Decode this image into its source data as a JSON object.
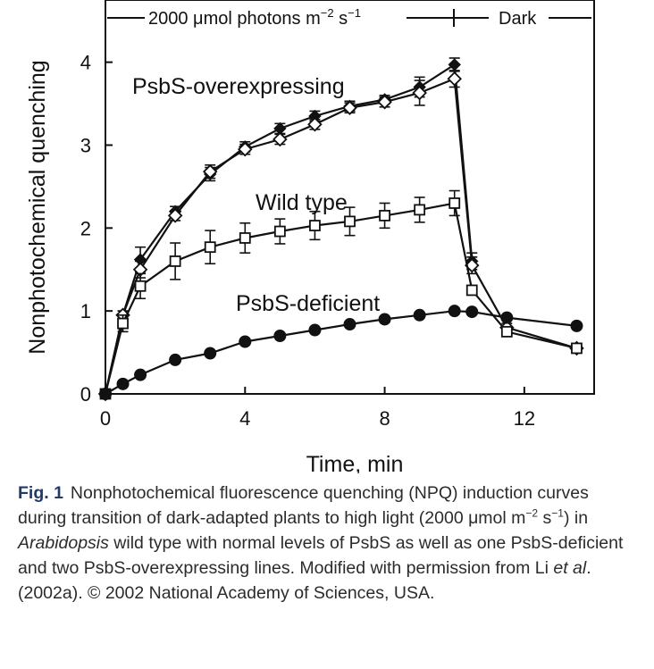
{
  "chart_data": {
    "type": "line",
    "xlabel": "Time, min",
    "ylabel": "Nonphotochemical quenching",
    "xlim": [
      0,
      14
    ],
    "ylim": [
      0,
      4.75
    ],
    "xticks": [
      0,
      4,
      8,
      12
    ],
    "yticks": [
      0,
      1,
      2,
      3,
      4
    ],
    "light_bar": {
      "light_label": "2000 μmol photons m",
      "light_exp1": "−2",
      "light_mid": " s",
      "light_exp2": "−1",
      "dark_label": "Dark",
      "transition_x": 10
    },
    "labels": {
      "overexpressing": "PsbS-overexpressing",
      "wild_type": "Wild type",
      "deficient": "PsbS-deficient"
    },
    "series": [
      {
        "marker": "filled-diamond",
        "x": [
          0,
          0.5,
          1,
          2,
          3,
          4,
          5,
          6,
          7,
          8,
          9,
          10,
          10.5
        ],
        "y": [
          0,
          0.95,
          1.62,
          2.2,
          2.65,
          2.98,
          3.2,
          3.35,
          3.47,
          3.55,
          3.7,
          3.97,
          1.6
        ],
        "err": [
          0,
          0.05,
          0.15,
          0.06,
          0.08,
          0.06,
          0.06,
          0.06,
          0.06,
          0.05,
          0.12,
          0.08,
          0.1
        ]
      },
      {
        "marker": "open-diamond",
        "x": [
          0,
          0.5,
          1,
          2,
          3,
          4,
          5,
          6,
          7,
          8,
          9,
          10,
          10.5,
          11.5,
          13.5
        ],
        "y": [
          0,
          0.95,
          1.5,
          2.15,
          2.68,
          2.95,
          3.07,
          3.25,
          3.45,
          3.52,
          3.63,
          3.8,
          1.55,
          0.8,
          0.55
        ],
        "err": [
          0,
          0.05,
          0.1,
          0.06,
          0.08,
          0.06,
          0.06,
          0.06,
          0.06,
          0.06,
          0.15,
          0.1,
          0.1,
          0.05,
          0.04
        ]
      },
      {
        "marker": "open-square",
        "x": [
          0,
          0.5,
          1,
          2,
          3,
          4,
          5,
          6,
          7,
          8,
          9,
          10,
          10.5,
          11.5,
          13.5
        ],
        "y": [
          0,
          0.85,
          1.3,
          1.6,
          1.77,
          1.88,
          1.96,
          2.03,
          2.08,
          2.15,
          2.22,
          2.3,
          1.25,
          0.75,
          0.55
        ],
        "err": [
          0,
          0.1,
          0.15,
          0.22,
          0.2,
          0.18,
          0.15,
          0.17,
          0.17,
          0.15,
          0.15,
          0.15,
          0.05,
          0.04,
          0.03
        ]
      },
      {
        "marker": "filled-circle",
        "x": [
          0,
          0.5,
          1,
          2,
          3,
          4,
          5,
          6,
          7,
          8,
          9,
          10,
          10.5,
          11.5,
          13.5
        ],
        "y": [
          0,
          0.12,
          0.23,
          0.41,
          0.49,
          0.63,
          0.7,
          0.77,
          0.84,
          0.9,
          0.95,
          1.0,
          0.99,
          0.92,
          0.82
        ],
        "err": [
          0,
          0,
          0,
          0,
          0,
          0,
          0,
          0,
          0,
          0,
          0,
          0,
          0,
          0,
          0
        ]
      }
    ]
  },
  "caption": {
    "fig_label": "Fig. 1",
    "text_1": "Nonphotochemical fluorescence quenching (NPQ) induction curves during transition of dark-adapted plants to high light (2000 μmol m",
    "sup_1": "−2",
    "text_2": " s",
    "sup_2": "−1",
    "text_3": ") in ",
    "italic_1": "Arabidopsis",
    "text_4": " wild type with normal levels of PsbS as well as one PsbS-deficient and two PsbS-overexpressing lines. Modified with permission from Li ",
    "italic_2": "et al",
    "text_5": ". (2002a). © 2002 National Academy of Sciences, USA."
  }
}
